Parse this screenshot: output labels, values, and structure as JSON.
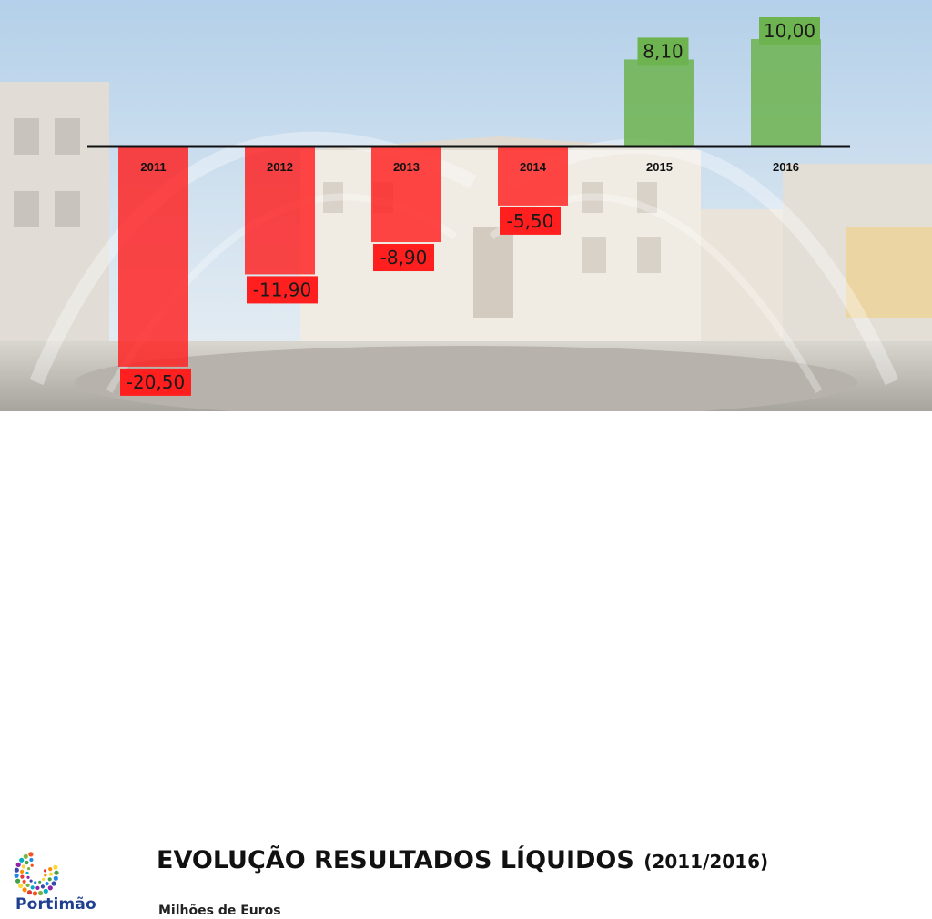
{
  "colors": {
    "negative_bar": "#ff1f1f",
    "positive_bar": "#6db34f",
    "axis_line": "#111111",
    "brand_blue": "#1f3f8f"
  },
  "footer": {
    "title": "EVOLUÇÃO RESULTADOS LÍQUIDOS",
    "period": "(2011/2016)",
    "subtitle": "Milhões de Euros",
    "logo_text": "Portimão"
  },
  "chart_data": {
    "type": "bar",
    "title": "EVOLUÇÃO RESULTADOS LÍQUIDOS (2011/2016)",
    "ylabel": "Milhões de Euros",
    "categories": [
      "2011",
      "2012",
      "2013",
      "2014",
      "2015",
      "2016"
    ],
    "values": [
      -20.5,
      -11.9,
      -8.9,
      -5.5,
      8.1,
      10.0
    ],
    "value_labels": [
      "-20,50",
      "-11,90",
      "-8,90",
      "-5,50",
      "8,10",
      "10,00"
    ],
    "ylim": [
      -22,
      12
    ],
    "grid": false,
    "legend": "none"
  }
}
